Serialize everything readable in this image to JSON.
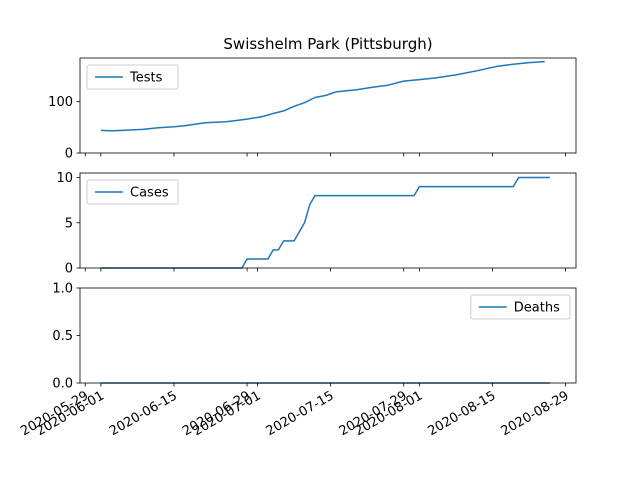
{
  "chart_data": {
    "type": "line",
    "title": "Swisshelm Park (Pittsburgh)",
    "line_color": "#1f77b4",
    "shared_x": {
      "ticks": [
        "2020-05-29",
        "2020-06-01",
        "2020-06-15",
        "2020-06-29",
        "2020-07-01",
        "2020-07-15",
        "2020-07-29",
        "2020-08-01",
        "2020-08-15",
        "2020-08-29"
      ],
      "xlim": [
        "2020-05-28",
        "2020-08-31"
      ],
      "tick_rotation": 30
    },
    "panels": [
      {
        "legend": "Tests",
        "legend_position": "upper left",
        "ylim": [
          0,
          185
        ],
        "yticks": [
          0,
          100
        ],
        "series": {
          "x": [
            "2020-06-01",
            "2020-06-03",
            "2020-06-05",
            "2020-06-09",
            "2020-06-12",
            "2020-06-15",
            "2020-06-17",
            "2020-06-21",
            "2020-06-25",
            "2020-06-29",
            "2020-07-02",
            "2020-07-04",
            "2020-07-06",
            "2020-07-08",
            "2020-07-10",
            "2020-07-12",
            "2020-07-14",
            "2020-07-16",
            "2020-07-20",
            "2020-07-23",
            "2020-07-26",
            "2020-07-29",
            "2020-08-01",
            "2020-08-04",
            "2020-08-08",
            "2020-08-12",
            "2020-08-16",
            "2020-08-19",
            "2020-08-22",
            "2020-08-25"
          ],
          "values": [
            44,
            43,
            44,
            46,
            49,
            51,
            53,
            59,
            61,
            66,
            71,
            77,
            82,
            91,
            98,
            108,
            112,
            119,
            123,
            128,
            132,
            140,
            143,
            146,
            152,
            160,
            169,
            173,
            176,
            178
          ]
        }
      },
      {
        "legend": "Cases",
        "legend_position": "upper left",
        "ylim": [
          0,
          10.5
        ],
        "yticks": [
          0,
          5,
          10
        ],
        "series": {
          "x": [
            "2020-06-01",
            "2020-06-28",
            "2020-06-29",
            "2020-07-03",
            "2020-07-04",
            "2020-07-05",
            "2020-07-06",
            "2020-07-08",
            "2020-07-10",
            "2020-07-11",
            "2020-07-12",
            "2020-07-31",
            "2020-08-01",
            "2020-08-19",
            "2020-08-20",
            "2020-08-26"
          ],
          "values": [
            0,
            0,
            1,
            1,
            2,
            2,
            3,
            3,
            5,
            7,
            8,
            8,
            9,
            9,
            10,
            10
          ]
        }
      },
      {
        "legend": "Deaths",
        "legend_position": "upper right",
        "ylim": [
          0,
          1.0
        ],
        "yticks": [
          0.0,
          0.5,
          1.0
        ],
        "series": {
          "x": [
            "2020-06-01",
            "2020-08-26"
          ],
          "values": [
            0,
            0
          ]
        }
      }
    ]
  }
}
